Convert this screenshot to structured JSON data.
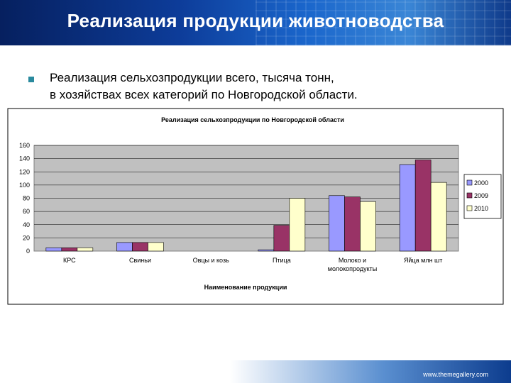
{
  "header": {
    "title": "Реализация продукции животноводства"
  },
  "subtitle": {
    "line1": "Реализация сельхозпродукции всего, тысяча тонн,",
    "line2": "в хозяйствах всех категорий по Новгородской области."
  },
  "footer": {
    "url": "www.themegallery.com"
  },
  "colors": {
    "s2000": "#9999ff",
    "s2009": "#993366",
    "s2010": "#ffffcc",
    "plot_bg": "#c0c0c0"
  },
  "chart_data": {
    "type": "bar",
    "title": "Реализация сельхозпродукции по Новгородской области",
    "xlabel": "Наименование продукции",
    "ylabel": "",
    "ylim": [
      0,
      160
    ],
    "yticks": [
      "0",
      "20",
      "40",
      "60",
      "80",
      "100",
      "120",
      "140",
      "160"
    ],
    "grid": true,
    "legend": "right",
    "categories": [
      [
        "КРС"
      ],
      [
        "Свиньи"
      ],
      [
        "Овцы и козь"
      ],
      [
        "Птица"
      ],
      [
        "Молоко и",
        "молокопродукты"
      ],
      [
        "Яйца млн шт"
      ]
    ],
    "series": [
      {
        "name": "2000",
        "values": [
          5,
          13,
          0,
          2,
          84,
          131
        ]
      },
      {
        "name": "2009",
        "values": [
          5,
          13,
          0,
          39,
          82,
          138
        ]
      },
      {
        "name": "2010",
        "values": [
          5,
          13,
          0,
          80,
          75,
          104
        ]
      }
    ]
  }
}
